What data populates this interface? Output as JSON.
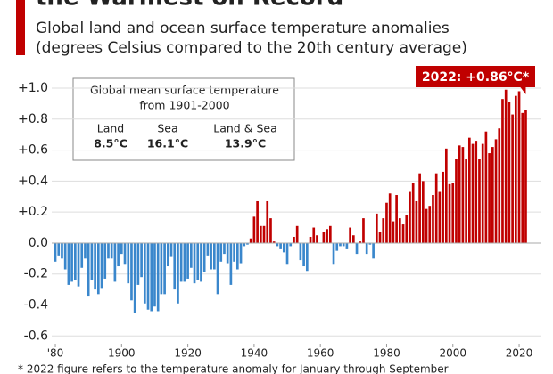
{
  "chart_data": {
    "type": "bar",
    "title": "the Warmest on Record",
    "subtitle": [
      "Global land and ocean surface temperature anomalies",
      "(degrees Celsius compared to the 20th century average)"
    ],
    "annotation": "2022: +0.86°C*",
    "footnote": "* 2022 figure refers to the temperature anomaly for January through September",
    "info_box": {
      "title": [
        "Global mean surface temperature",
        "from 1901-2000"
      ],
      "items": [
        {
          "label": "Land",
          "value": "8.5°C"
        },
        {
          "label": "Sea",
          "value": "16.1°C"
        },
        {
          "label": "Land & Sea",
          "value": "13.9°C"
        }
      ]
    },
    "x": [
      1880,
      1881,
      1882,
      1883,
      1884,
      1885,
      1886,
      1887,
      1888,
      1889,
      1890,
      1891,
      1892,
      1893,
      1894,
      1895,
      1896,
      1897,
      1898,
      1899,
      1900,
      1901,
      1902,
      1903,
      1904,
      1905,
      1906,
      1907,
      1908,
      1909,
      1910,
      1911,
      1912,
      1913,
      1914,
      1915,
      1916,
      1917,
      1918,
      1919,
      1920,
      1921,
      1922,
      1923,
      1924,
      1925,
      1926,
      1927,
      1928,
      1929,
      1930,
      1931,
      1932,
      1933,
      1934,
      1935,
      1936,
      1937,
      1938,
      1939,
      1940,
      1941,
      1942,
      1943,
      1944,
      1945,
      1946,
      1947,
      1948,
      1949,
      1950,
      1951,
      1952,
      1953,
      1954,
      1955,
      1956,
      1957,
      1958,
      1959,
      1960,
      1961,
      1962,
      1963,
      1964,
      1965,
      1966,
      1967,
      1968,
      1969,
      1970,
      1971,
      1972,
      1973,
      1974,
      1975,
      1976,
      1977,
      1978,
      1979,
      1980,
      1981,
      1982,
      1983,
      1984,
      1985,
      1986,
      1987,
      1988,
      1989,
      1990,
      1991,
      1992,
      1993,
      1994,
      1995,
      1996,
      1997,
      1998,
      1999,
      2000,
      2001,
      2002,
      2003,
      2004,
      2005,
      2006,
      2007,
      2008,
      2009,
      2010,
      2011,
      2012,
      2013,
      2014,
      2015,
      2016,
      2017,
      2018,
      2019,
      2020,
      2021,
      2022
    ],
    "values": [
      -0.12,
      -0.08,
      -0.1,
      -0.17,
      -0.27,
      -0.25,
      -0.24,
      -0.28,
      -0.16,
      -0.1,
      -0.34,
      -0.24,
      -0.3,
      -0.33,
      -0.29,
      -0.23,
      -0.1,
      -0.1,
      -0.25,
      -0.15,
      -0.07,
      -0.14,
      -0.26,
      -0.37,
      -0.45,
      -0.27,
      -0.22,
      -0.39,
      -0.43,
      -0.44,
      -0.41,
      -0.44,
      -0.33,
      -0.33,
      -0.15,
      -0.09,
      -0.3,
      -0.39,
      -0.25,
      -0.25,
      -0.23,
      -0.16,
      -0.26,
      -0.24,
      -0.25,
      -0.19,
      -0.08,
      -0.17,
      -0.17,
      -0.33,
      -0.12,
      -0.07,
      -0.13,
      -0.27,
      -0.12,
      -0.17,
      -0.13,
      -0.02,
      -0.01,
      0.03,
      0.17,
      0.27,
      0.11,
      0.11,
      0.27,
      0.16,
      0.01,
      -0.02,
      -0.04,
      -0.06,
      -0.14,
      -0.02,
      0.04,
      0.11,
      -0.11,
      -0.15,
      -0.18,
      0.04,
      0.1,
      0.05,
      0.0,
      0.07,
      0.09,
      0.11,
      -0.14,
      -0.05,
      -0.02,
      -0.02,
      -0.04,
      0.1,
      0.05,
      -0.07,
      0.01,
      0.16,
      -0.07,
      -0.01,
      -0.1,
      0.19,
      0.07,
      0.16,
      0.26,
      0.32,
      0.14,
      0.31,
      0.16,
      0.12,
      0.18,
      0.33,
      0.39,
      0.27,
      0.45,
      0.4,
      0.22,
      0.24,
      0.31,
      0.45,
      0.33,
      0.46,
      0.61,
      0.38,
      0.39,
      0.54,
      0.63,
      0.62,
      0.54,
      0.68,
      0.64,
      0.66,
      0.54,
      0.64,
      0.72,
      0.58,
      0.62,
      0.67,
      0.74,
      0.93,
      0.99,
      0.91,
      0.83,
      0.95,
      0.98,
      0.84,
      0.86
    ],
    "positive_color": "#c00000",
    "negative_color": "#3a87cc",
    "xlim": [
      1878,
      2024
    ],
    "xticks": [
      {
        "value": 1880,
        "label": "'80"
      },
      1900,
      1920,
      1940,
      1960,
      1980,
      2000,
      2020
    ],
    "ylim": [
      -0.65,
      1.05
    ],
    "yticks": [
      {
        "value": 1.0,
        "label": "+1.0"
      },
      {
        "value": 0.8,
        "label": "+0.8"
      },
      {
        "value": 0.6,
        "label": "+0.6"
      },
      {
        "value": 0.4,
        "label": "+0.4"
      },
      {
        "value": 0.2,
        "label": "+0.2"
      },
      {
        "value": 0,
        "label": "0.0"
      },
      -0.2,
      -0.4,
      -0.6
    ],
    "grid": true
  }
}
